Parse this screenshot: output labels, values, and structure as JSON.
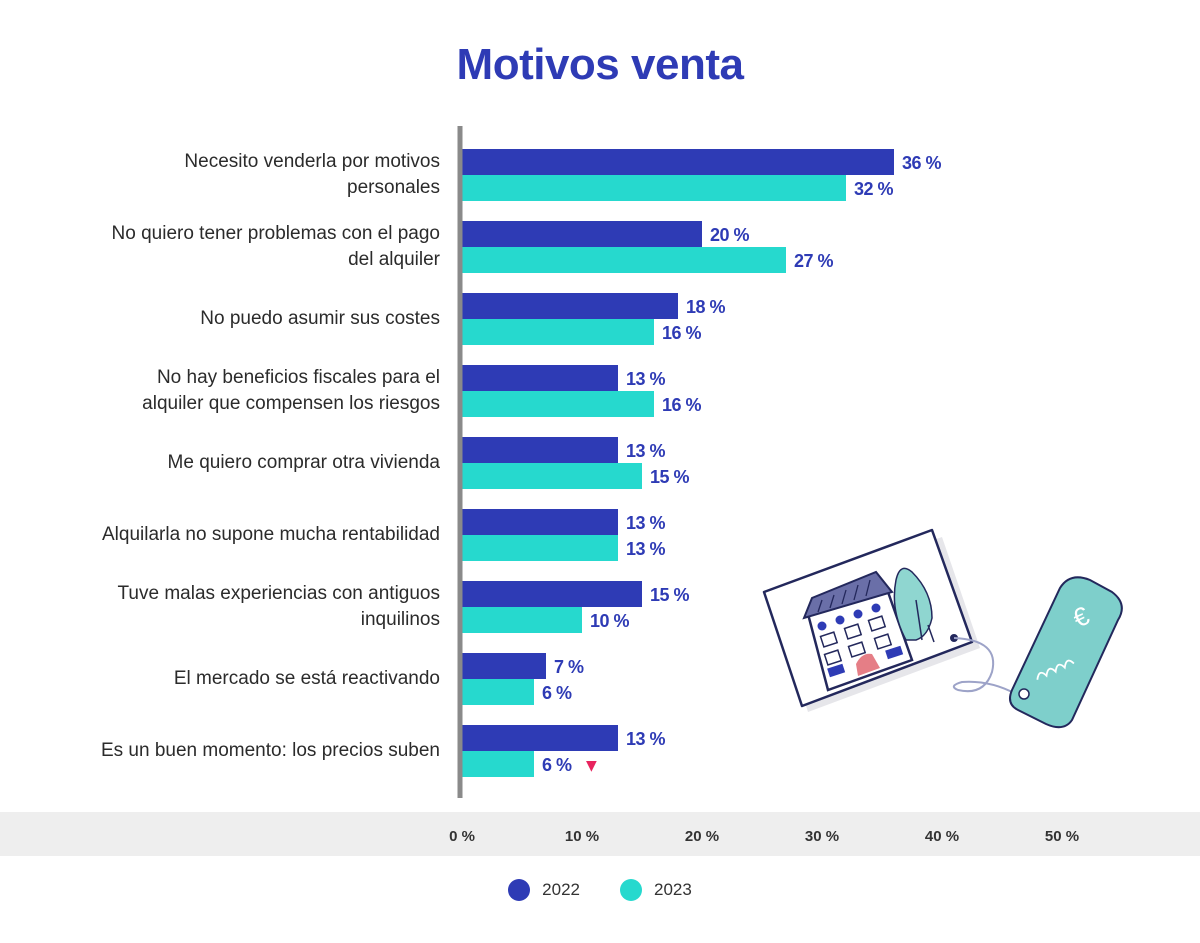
{
  "colors": {
    "series_2022": "#2E3BB5",
    "series_2023": "#26D9CE",
    "label_text": "#2E3BB5",
    "decrease_marker": "#E8245E",
    "axis_line": "#8A8A8A"
  },
  "chart_data": {
    "type": "bar",
    "orientation": "horizontal",
    "title": "Motivos venta",
    "categories": [
      "Necesito venderla por motivos personales",
      "No quiero tener problemas con el pago del alquiler",
      "No puedo asumir sus costes",
      "No hay beneficios fiscales para el alquiler que compensen los riesgos",
      "Me quiero comprar otra vivienda",
      "Alquilarla no supone mucha rentabilidad",
      "Tuve malas experiencias con antiguos inquilinos",
      "El mercado se está reactivando",
      "Es un buen momento: los precios suben"
    ],
    "category_lines": [
      [
        "Necesito venderla por motivos",
        "personales"
      ],
      [
        "No quiero tener problemas con el pago",
        "del alquiler"
      ],
      [
        "No puedo asumir sus costes"
      ],
      [
        "No hay beneficios fiscales para el",
        "alquiler que compensen los riesgos"
      ],
      [
        "Me quiero comprar otra vivienda"
      ],
      [
        "Alquilarla no supone mucha rentabilidad"
      ],
      [
        "Tuve malas experiencias con antiguos",
        "inquilinos"
      ],
      [
        "El mercado se está reactivando"
      ],
      [
        "Es un buen momento: los precios suben"
      ]
    ],
    "series": [
      {
        "name": "2022",
        "values": [
          36,
          20,
          18,
          13,
          13,
          13,
          15,
          7,
          13
        ]
      },
      {
        "name": "2023",
        "values": [
          32,
          27,
          16,
          16,
          15,
          13,
          10,
          6,
          6
        ]
      }
    ],
    "value_suffix": " %",
    "xlim": [
      0,
      50
    ],
    "xticks": [
      0,
      10,
      20,
      30,
      40,
      50
    ],
    "tick_suffix": " %",
    "annotations": [
      {
        "category_index": 8,
        "series": "2023",
        "symbol": "▼",
        "meaning": "decrease"
      }
    ],
    "legend": {
      "position": "bottom-center",
      "items": [
        "2022",
        "2023"
      ]
    }
  }
}
